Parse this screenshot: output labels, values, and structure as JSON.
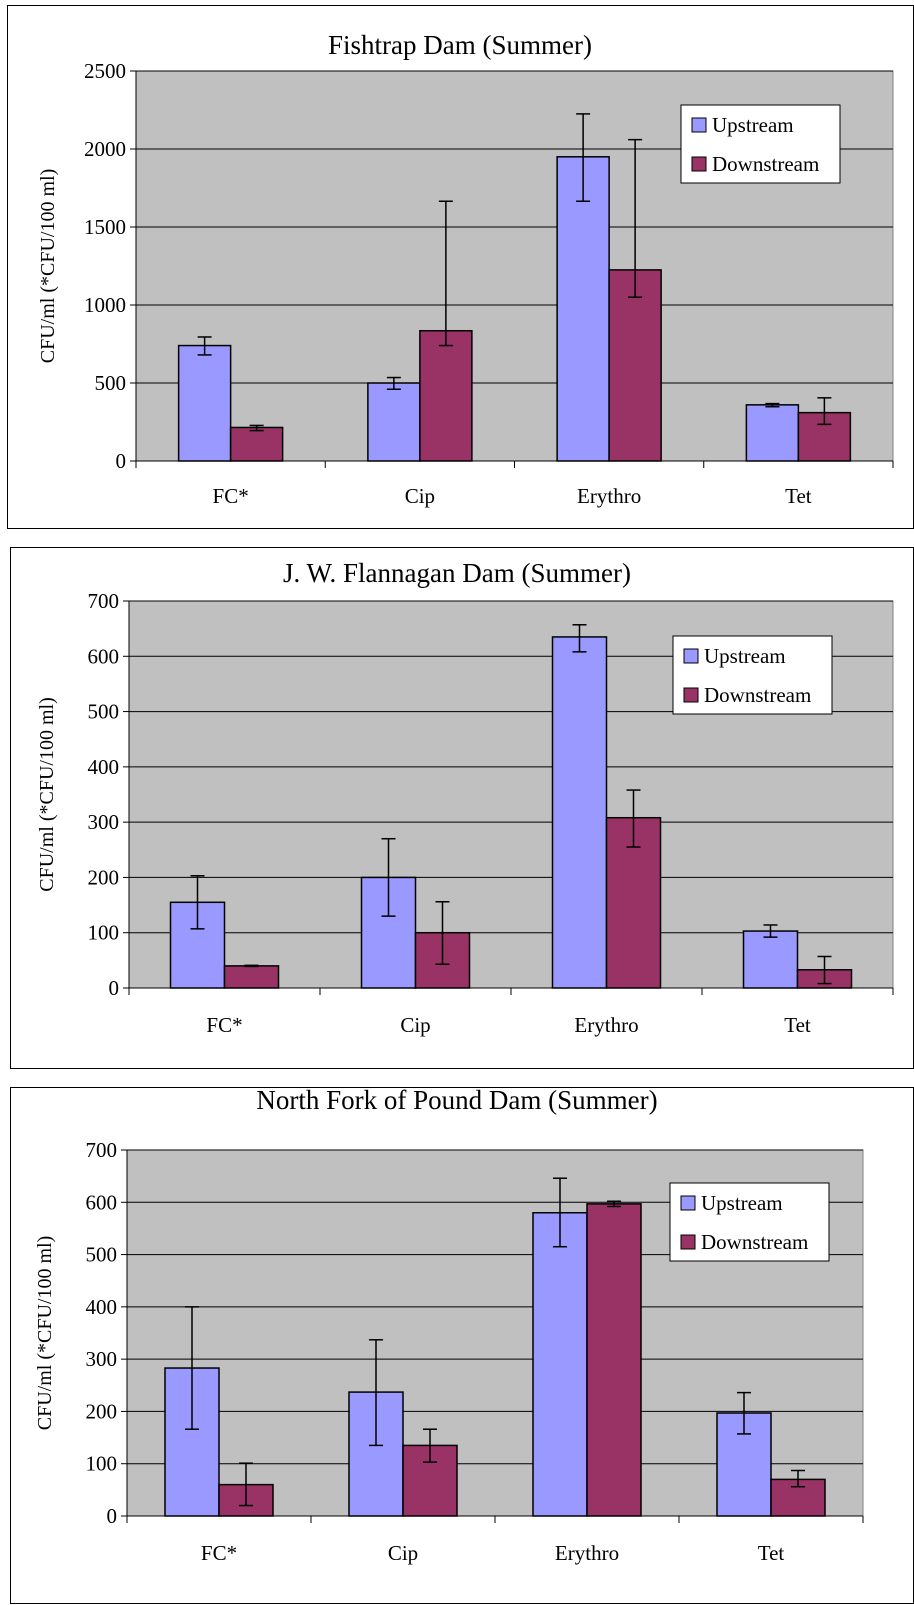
{
  "chart_data": [
    {
      "type": "bar",
      "title": "Fishtrap Dam (Summer)",
      "xlabel": "",
      "ylabel": "CFU/ml (*CFU/100 ml)",
      "categories": [
        "FC*",
        "Cip",
        "Erythro",
        "Tet"
      ],
      "ylim": [
        0,
        2500
      ],
      "yticks": [
        0,
        500,
        1000,
        1500,
        2000,
        2500
      ],
      "grid": true,
      "legend": "top-right",
      "series": [
        {
          "name": "Upstream",
          "color": "#9999ff",
          "values": [
            740,
            500,
            1950,
            360
          ],
          "error_low": [
            680,
            460,
            1665,
            348
          ],
          "error_high": [
            795,
            535,
            2225,
            368
          ]
        },
        {
          "name": "Downstream",
          "color": "#993366",
          "values": [
            215,
            835,
            1225,
            310
          ],
          "error_low": [
            195,
            740,
            1050,
            235
          ],
          "error_high": [
            228,
            1665,
            2060,
            405
          ]
        }
      ]
    },
    {
      "type": "bar",
      "title": "J. W. Flannagan Dam (Summer)",
      "xlabel": "",
      "ylabel": "CFU/ml (*CFU/100 ml)",
      "categories": [
        "FC*",
        "Cip",
        "Erythro",
        "Tet"
      ],
      "ylim": [
        0,
        700
      ],
      "yticks": [
        0,
        100,
        200,
        300,
        400,
        500,
        600,
        700
      ],
      "grid": true,
      "legend": "top-right",
      "series": [
        {
          "name": "Upstream",
          "color": "#9999ff",
          "values": [
            155,
            200,
            635,
            103
          ],
          "error_low": [
            107,
            130,
            608,
            92
          ],
          "error_high": [
            203,
            270,
            657,
            114
          ]
        },
        {
          "name": "Downstream",
          "color": "#993366",
          "values": [
            40,
            100,
            308,
            33
          ],
          "error_low": [
            39,
            43,
            255,
            8
          ],
          "error_high": [
            41,
            156,
            358,
            57
          ]
        }
      ]
    },
    {
      "type": "bar",
      "title": "North Fork of Pound Dam (Summer)",
      "xlabel": "",
      "ylabel": "CFU/ml (*CFU/100 ml)",
      "categories": [
        "FC*",
        "Cip",
        "Erythro",
        "Tet"
      ],
      "ylim": [
        0,
        700
      ],
      "yticks": [
        0,
        100,
        200,
        300,
        400,
        500,
        600,
        700
      ],
      "grid": true,
      "legend": "top-right",
      "series": [
        {
          "name": "Upstream",
          "color": "#9999ff",
          "values": [
            283,
            237,
            580,
            197
          ],
          "error_low": [
            166,
            135,
            515,
            157
          ],
          "error_high": [
            400,
            337,
            646,
            236
          ]
        },
        {
          "name": "Downstream",
          "color": "#993366",
          "values": [
            60,
            135,
            597,
            70
          ],
          "error_low": [
            20,
            103,
            592,
            56
          ],
          "error_high": [
            101,
            166,
            602,
            87
          ]
        }
      ]
    }
  ]
}
